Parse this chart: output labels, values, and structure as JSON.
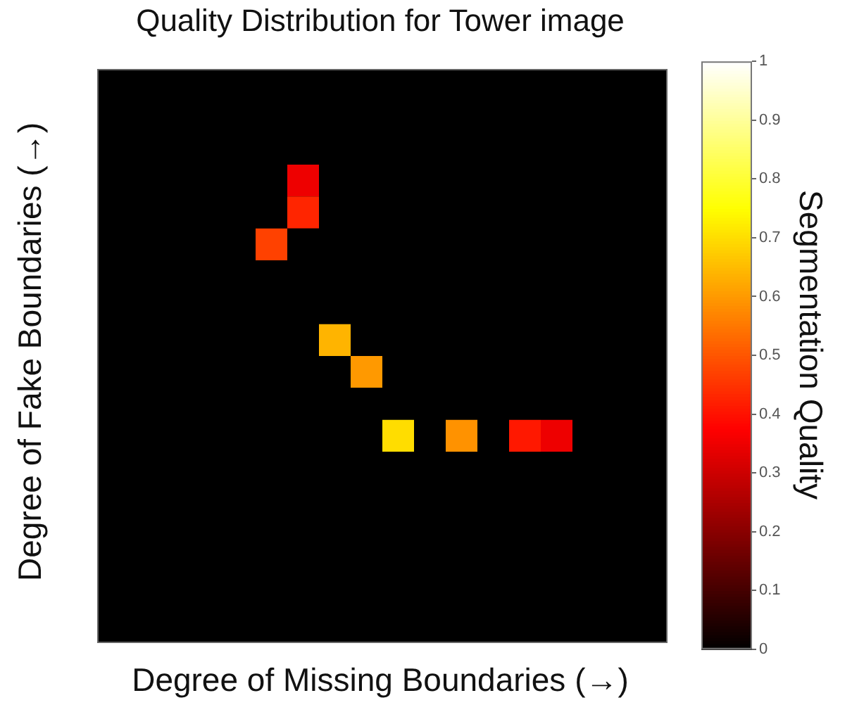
{
  "chart_data": {
    "type": "heatmap",
    "title": "Quality Distribution for Tower image",
    "xlabel": "Degree of Missing Boundaries (→)",
    "ylabel": "Degree of Fake Boundaries (→)",
    "clabel": "Segmentation Quality",
    "categories": [
      null,
      null,
      null,
      null,
      null,
      null,
      null,
      null,
      null,
      null,
      null,
      null,
      null,
      null,
      null,
      null,
      null,
      null
    ],
    "y_categories": [
      null,
      null,
      null,
      null,
      null,
      null,
      null,
      null,
      null,
      null,
      null,
      null,
      null,
      null,
      null,
      null,
      null,
      null
    ],
    "cells": [
      [
        0,
        0,
        0,
        0,
        0,
        0,
        0,
        0,
        0,
        0,
        0,
        0,
        0,
        0,
        0,
        0,
        0,
        0
      ],
      [
        0,
        0,
        0,
        0,
        0,
        0,
        0,
        0,
        0,
        0,
        0,
        0,
        0,
        0,
        0,
        0,
        0,
        0
      ],
      [
        0,
        0,
        0,
        0,
        0,
        0,
        0,
        0,
        0,
        0,
        0,
        0,
        0,
        0,
        0,
        0,
        0,
        0
      ],
      [
        0,
        0,
        0,
        0,
        0,
        0,
        0.35,
        0,
        0,
        0,
        0,
        0,
        0,
        0,
        0,
        0,
        0,
        0
      ],
      [
        0,
        0,
        0,
        0,
        0,
        0,
        0.43,
        0,
        0,
        0,
        0,
        0,
        0,
        0,
        0,
        0,
        0,
        0
      ],
      [
        0,
        0,
        0,
        0,
        0,
        0.47,
        0,
        0,
        0,
        0,
        0,
        0,
        0,
        0,
        0,
        0,
        0,
        0
      ],
      [
        0,
        0,
        0,
        0,
        0,
        0,
        0,
        0,
        0,
        0,
        0,
        0,
        0,
        0,
        0,
        0,
        0,
        0
      ],
      [
        0,
        0,
        0,
        0,
        0,
        0,
        0,
        0,
        0,
        0,
        0,
        0,
        0,
        0,
        0,
        0,
        0,
        0
      ],
      [
        0,
        0,
        0,
        0,
        0,
        0,
        0,
        0.64,
        0,
        0,
        0,
        0,
        0,
        0,
        0,
        0,
        0,
        0
      ],
      [
        0,
        0,
        0,
        0,
        0,
        0,
        0,
        0,
        0.6,
        0,
        0,
        0,
        0,
        0,
        0,
        0,
        0,
        0
      ],
      [
        0,
        0,
        0,
        0,
        0,
        0,
        0,
        0,
        0,
        0,
        0,
        0,
        0,
        0,
        0,
        0,
        0,
        0
      ],
      [
        0,
        0,
        0,
        0,
        0,
        0,
        0,
        0,
        0,
        0.7,
        0,
        0.59,
        0,
        0.41,
        0.35,
        0,
        0,
        0
      ],
      [
        0,
        0,
        0,
        0,
        0,
        0,
        0,
        0,
        0,
        0,
        0,
        0,
        0,
        0,
        0,
        0,
        0,
        0
      ],
      [
        0,
        0,
        0,
        0,
        0,
        0,
        0,
        0,
        0,
        0,
        0,
        0,
        0,
        0,
        0,
        0,
        0,
        0
      ],
      [
        0,
        0,
        0,
        0,
        0,
        0,
        0,
        0,
        0,
        0,
        0,
        0,
        0,
        0,
        0,
        0,
        0,
        0
      ],
      [
        0,
        0,
        0,
        0,
        0,
        0,
        0,
        0,
        0,
        0,
        0,
        0,
        0,
        0,
        0,
        0,
        0,
        0
      ],
      [
        0,
        0,
        0,
        0,
        0,
        0,
        0,
        0,
        0,
        0,
        0,
        0,
        0,
        0,
        0,
        0,
        0,
        0
      ],
      [
        0,
        0,
        0,
        0,
        0,
        0,
        0,
        0,
        0,
        0,
        0,
        0,
        0,
        0,
        0,
        0,
        0,
        0
      ]
    ],
    "tick_labels": false,
    "clim": [
      0,
      1
    ],
    "cticks": [
      0,
      0.1,
      0.2,
      0.3,
      0.4,
      0.5,
      0.6,
      0.7,
      0.8,
      0.9,
      1
    ]
  }
}
